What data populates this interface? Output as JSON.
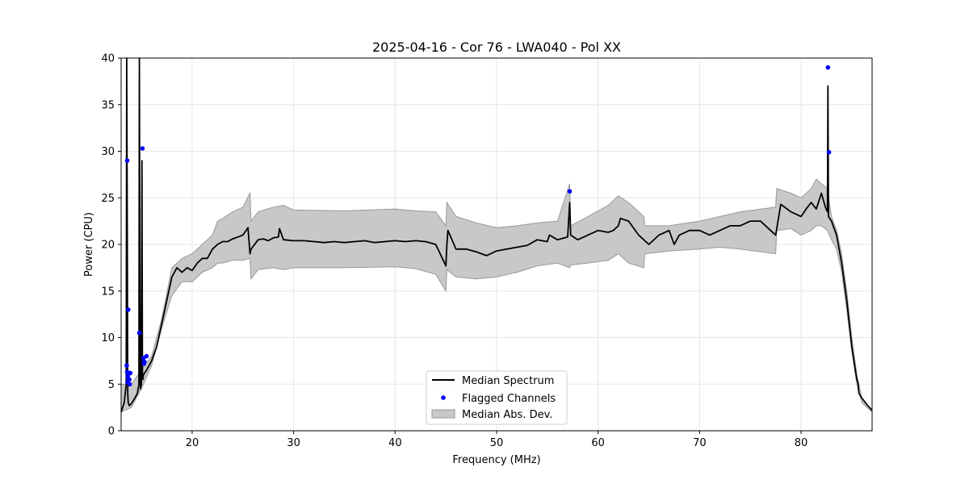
{
  "chart_data": {
    "type": "line",
    "title": "2025-04-16 - Cor 76 - LWA040 - Pol XX",
    "xlabel": "Frequency (MHz)",
    "ylabel": "Power (CPU)",
    "xlim": [
      13.0,
      87.0
    ],
    "ylim": [
      0,
      40
    ],
    "xticks": [
      20,
      30,
      40,
      50,
      60,
      70,
      80
    ],
    "yticks": [
      0,
      5,
      10,
      15,
      20,
      25,
      30,
      35,
      40
    ],
    "grid": true,
    "legend": {
      "placement": "bottom-center",
      "entries": [
        "Median Spectrum",
        "Flagged Channels",
        "Median Abs. Dev."
      ]
    },
    "colors": {
      "median": "#000000",
      "flagged": "#0000ff",
      "band_fill": "#c8c8c8",
      "band_edge": "#999999",
      "grid": "#e6e6e6"
    },
    "series": [
      {
        "name": "Median Spectrum",
        "x": [
          13.0,
          13.3,
          13.5,
          13.55,
          13.6,
          13.65,
          13.7,
          13.8,
          13.9,
          14.0,
          14.3,
          14.6,
          14.75,
          14.8,
          14.85,
          14.9,
          15.0,
          15.05,
          15.1,
          15.15,
          15.2,
          15.5,
          16.0,
          16.5,
          17.0,
          17.5,
          18.0,
          18.5,
          19.0,
          19.5,
          20.0,
          20.5,
          21.0,
          21.5,
          22.0,
          22.5,
          23.0,
          23.5,
          24.0,
          24.5,
          25.0,
          25.5,
          25.7,
          25.8,
          26.5,
          27.0,
          27.5,
          28.0,
          28.5,
          28.6,
          29.0,
          30.0,
          31.0,
          32.0,
          33.0,
          34.0,
          35.0,
          36.0,
          37.0,
          38.0,
          39.0,
          40.0,
          41.0,
          42.0,
          43.0,
          44.0,
          45.0,
          45.1,
          45.2,
          46.0,
          47.0,
          48.0,
          49.0,
          50.0,
          51.0,
          52.0,
          53.0,
          53.2,
          54.0,
          55.0,
          55.2,
          56.0,
          57.0,
          57.2,
          57.3,
          58.0,
          59.0,
          60.0,
          61.0,
          61.5,
          62.0,
          62.2,
          63.0,
          64.0,
          64.5,
          65.0,
          66.0,
          67.0,
          67.5,
          68.0,
          69.0,
          70.0,
          71.0,
          72.0,
          73.0,
          74.0,
          75.0,
          76.0,
          77.0,
          77.5,
          78.0,
          79.0,
          80.0,
          80.5,
          81.0,
          81.5,
          82.0,
          82.4,
          82.6,
          82.65,
          82.7,
          83.0,
          83.5,
          84.0,
          84.5,
          85.0,
          85.5,
          85.6,
          85.7,
          86.0,
          86.5,
          87.0
        ],
        "y": [
          2.0,
          3.0,
          5.0,
          40.0,
          25.0,
          4.0,
          3.0,
          2.7,
          2.8,
          2.9,
          3.4,
          4.0,
          5.0,
          40.0,
          15.0,
          4.5,
          5.0,
          29.0,
          6.0,
          5.5,
          6.0,
          6.5,
          7.5,
          9.0,
          11.5,
          14.0,
          16.5,
          17.5,
          17.0,
          17.5,
          17.2,
          18.0,
          18.5,
          18.5,
          19.5,
          20.0,
          20.3,
          20.3,
          20.6,
          20.8,
          21.0,
          21.8,
          19.0,
          19.5,
          20.5,
          20.6,
          20.4,
          20.7,
          20.8,
          21.7,
          20.5,
          20.4,
          20.4,
          20.3,
          20.2,
          20.3,
          20.2,
          20.3,
          20.4,
          20.2,
          20.3,
          20.4,
          20.3,
          20.4,
          20.3,
          20.0,
          17.7,
          20.0,
          21.5,
          19.5,
          19.5,
          19.2,
          18.8,
          19.3,
          19.5,
          19.7,
          19.9,
          20.0,
          20.5,
          20.3,
          21.0,
          20.5,
          20.8,
          24.5,
          21.0,
          20.5,
          21.0,
          21.5,
          21.3,
          21.5,
          22.0,
          22.8,
          22.5,
          21.0,
          20.5,
          20.0,
          21.0,
          21.5,
          20.0,
          21.0,
          21.5,
          21.5,
          21.0,
          21.5,
          22.0,
          22.0,
          22.5,
          22.5,
          21.5,
          21.0,
          24.3,
          23.5,
          23.0,
          23.8,
          24.5,
          23.8,
          25.5,
          24.0,
          23.5,
          37.0,
          23.0,
          22.5,
          21.0,
          18.0,
          14.0,
          9.0,
          5.5,
          5.2,
          4.0,
          3.5,
          2.8,
          2.2
        ]
      },
      {
        "name": "Median Abs. Dev.",
        "upper": [
          13.0,
          5.0,
          14.0,
          5.0,
          15.0,
          6.5,
          16.0,
          8.0,
          17.0,
          12.0,
          18.0,
          17.5,
          19.0,
          18.5,
          20.0,
          19.0,
          21.0,
          20.0,
          22.0,
          21.0,
          22.5,
          22.5,
          23.0,
          22.8,
          24.0,
          23.5,
          25.0,
          24.0,
          25.7,
          25.5,
          25.8,
          22.5,
          26.5,
          23.5,
          28.0,
          24.0,
          29.0,
          24.2,
          30.0,
          23.7,
          35.0,
          23.6,
          40.0,
          23.8,
          42.0,
          23.6,
          44.0,
          23.5,
          45.0,
          22.0,
          45.1,
          24.5,
          46.0,
          23.0,
          48.0,
          22.3,
          50.0,
          21.8,
          52.0,
          22.0,
          54.0,
          22.3,
          56.0,
          22.5,
          57.2,
          26.5,
          57.3,
          22.0,
          59.0,
          23.0,
          61.0,
          24.2,
          62.0,
          25.2,
          63.0,
          24.5,
          64.5,
          23.0,
          64.6,
          22.0,
          67.0,
          22.0,
          70.0,
          22.5,
          72.0,
          23.0,
          74.0,
          23.5,
          77.5,
          24.0,
          77.6,
          26.0,
          79.0,
          25.5,
          80.0,
          25.0,
          81.0,
          26.0,
          81.5,
          27.0,
          82.0,
          26.5,
          82.6,
          26.0,
          83.0,
          23.0,
          83.5,
          21.5,
          84.0,
          19.0,
          84.5,
          15.0,
          85.0,
          10.0,
          85.5,
          6.0,
          86.0,
          3.5,
          86.5,
          2.8,
          87.0,
          2.2
        ],
        "lower": [
          13.0,
          2.0,
          14.0,
          2.5,
          15.0,
          4.5,
          16.0,
          7.0,
          17.0,
          11.0,
          18.0,
          14.5,
          19.0,
          16.0,
          20.0,
          16.0,
          21.0,
          17.0,
          22.0,
          17.5,
          22.5,
          18.0,
          23.0,
          18.0,
          24.0,
          18.3,
          25.0,
          18.3,
          25.7,
          18.5,
          25.8,
          16.3,
          26.5,
          17.3,
          28.0,
          17.5,
          29.0,
          17.3,
          30.0,
          17.5,
          35.0,
          17.5,
          40.0,
          17.6,
          42.0,
          17.4,
          44.0,
          16.8,
          45.0,
          15.0,
          45.1,
          17.3,
          46.0,
          16.5,
          48.0,
          16.3,
          50.0,
          16.5,
          52.0,
          17.0,
          54.0,
          17.7,
          56.0,
          18.0,
          57.2,
          17.5,
          57.3,
          17.8,
          59.0,
          18.0,
          61.0,
          18.3,
          62.0,
          19.0,
          63.0,
          18.0,
          64.5,
          17.5,
          64.6,
          19.0,
          67.0,
          19.3,
          70.0,
          19.5,
          72.0,
          19.7,
          74.0,
          19.5,
          77.5,
          19.0,
          77.6,
          21.5,
          79.0,
          21.7,
          80.0,
          21.0,
          81.0,
          21.5,
          81.5,
          22.0,
          82.0,
          22.0,
          82.6,
          21.5,
          83.0,
          20.5,
          83.5,
          19.5,
          84.0,
          17.0,
          84.5,
          13.0,
          85.0,
          8.5,
          85.5,
          5.0,
          86.0,
          3.0,
          86.5,
          2.5,
          87.0,
          2.0
        ]
      },
      {
        "name": "Flagged Channels",
        "x": [
          13.6,
          13.7,
          13.55,
          13.6,
          13.65,
          13.75,
          13.8,
          13.85,
          13.9,
          13.62,
          14.8,
          15.1,
          15.2,
          15.3,
          15.5,
          15.25,
          57.2,
          82.65,
          82.75
        ],
        "y": [
          29.0,
          13.0,
          7.0,
          6.3,
          5.8,
          6.1,
          5.5,
          5.0,
          6.2,
          5.2,
          10.5,
          30.3,
          7.8,
          7.4,
          8.0,
          7.2,
          25.7,
          39.0,
          29.9
        ]
      }
    ]
  }
}
